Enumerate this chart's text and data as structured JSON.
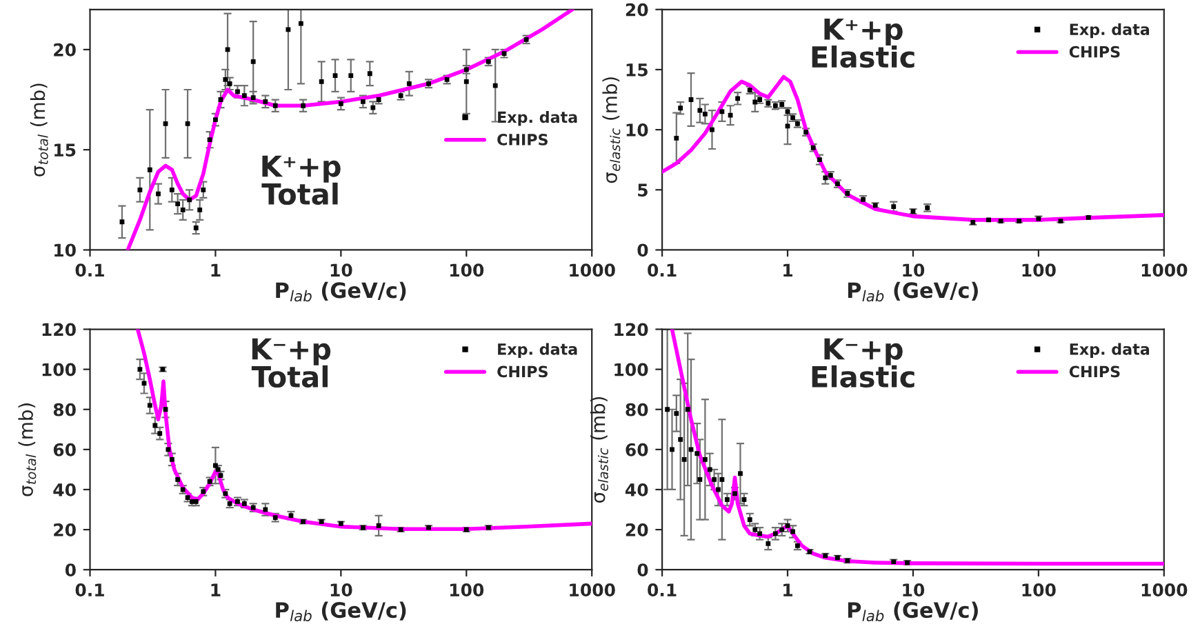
{
  "chart_data": [
    {
      "type": "scatter",
      "log": "x",
      "xlim": [
        0.1,
        1000
      ],
      "xticks": [
        0.1,
        1,
        10,
        100,
        1000
      ],
      "ylim": [
        10,
        22
      ],
      "yticks": [
        10,
        15,
        20
      ],
      "xlabel": "P$_{lab}$ (GeV/c)",
      "ylabel": "σ$_{total}$ (mb)",
      "annotations": [
        "K⁺+p\nTotal"
      ],
      "legend": "right",
      "grid": false,
      "series": [
        {
          "name": "Exp. data",
          "marker": "square",
          "color": "#000000",
          "x": [
            0.18,
            0.25,
            0.3,
            0.35,
            0.4,
            0.45,
            0.5,
            0.55,
            0.6,
            0.62,
            0.7,
            0.75,
            0.8,
            0.9,
            1.0,
            1.1,
            1.2,
            1.25,
            1.3,
            1.5,
            1.7,
            2.0,
            2.0,
            2.5,
            3.0,
            3.8,
            4.8,
            5,
            7,
            9,
            10,
            12,
            15,
            17,
            18,
            20,
            30,
            35,
            50,
            70,
            100,
            100,
            150,
            170,
            200,
            300
          ],
          "values": [
            11.4,
            13.0,
            14.0,
            12.8,
            16.3,
            13.0,
            12.3,
            12.0,
            16.3,
            12.5,
            11.1,
            12.0,
            13.0,
            15.5,
            16.5,
            17.5,
            18.5,
            20.0,
            18.3,
            17.9,
            17.7,
            19.4,
            17.6,
            17.4,
            17.2,
            21.0,
            21.3,
            17.2,
            18.4,
            18.7,
            17.3,
            18.7,
            17.4,
            18.8,
            17.1,
            17.5,
            17.7,
            18.3,
            18.3,
            18.5,
            19.0,
            18.4,
            19.4,
            18.2,
            19.8,
            20.5
          ],
          "errors": [
            0.8,
            0.6,
            3.0,
            0.5,
            1.7,
            0.6,
            0.5,
            0.5,
            1.7,
            0.5,
            0.3,
            0.5,
            0.4,
            0.4,
            0.3,
            0.4,
            0.5,
            1.8,
            0.3,
            0.3,
            0.5,
            2.0,
            0.3,
            0.3,
            0.3,
            [
              18.0,
              22.0
            ],
            [
              18.3,
              22.0
            ],
            0.3,
            1.0,
            0.8,
            0.3,
            0.8,
            0.3,
            0.6,
            0.3,
            0.2,
            0.2,
            0.6,
            0.2,
            0.2,
            0.2,
            1.6,
            0.2,
            1.8,
            0.2,
            0.2
          ]
        },
        {
          "name": "CHIPS",
          "type": "line",
          "marker": "none",
          "color": "#ff00ff",
          "x": [
            0.2,
            0.25,
            0.3,
            0.35,
            0.4,
            0.45,
            0.5,
            0.55,
            0.62,
            0.7,
            0.8,
            0.9,
            1.0,
            1.1,
            1.25,
            1.4,
            2,
            3,
            5,
            10,
            20,
            50,
            100,
            200,
            400,
            700
          ],
          "values": [
            10.0,
            11.5,
            12.9,
            13.9,
            14.2,
            14.0,
            13.3,
            12.8,
            12.5,
            12.7,
            13.8,
            15.3,
            16.5,
            17.4,
            18.0,
            17.7,
            17.5,
            17.2,
            17.2,
            17.4,
            17.7,
            18.3,
            19.0,
            19.9,
            21.0,
            22.0
          ]
        }
      ]
    },
    {
      "type": "scatter",
      "log": "x",
      "xlim": [
        0.1,
        1000
      ],
      "xticks": [
        0.1,
        1,
        10,
        100,
        1000
      ],
      "ylim": [
        0,
        20
      ],
      "yticks": [
        0,
        5,
        10,
        15,
        20
      ],
      "xlabel": "P$_{lab}$ (GeV/c)",
      "ylabel": "σ$_{elastic}$ (mb)",
      "annotations": [
        "K⁺+p\nElastic"
      ],
      "legend": "top right",
      "grid": false,
      "series": [
        {
          "name": "Exp. data",
          "marker": "square",
          "color": "#000000",
          "x": [
            0.13,
            0.14,
            0.17,
            0.2,
            0.22,
            0.25,
            0.3,
            0.35,
            0.4,
            0.5,
            0.55,
            0.6,
            0.7,
            0.8,
            0.9,
            1.0,
            1.0,
            1.1,
            1.2,
            1.4,
            1.6,
            1.8,
            2.0,
            2.2,
            2.5,
            3,
            4,
            5,
            7,
            10,
            13,
            30,
            40,
            50,
            70,
            100,
            150,
            250
          ],
          "values": [
            9.3,
            11.8,
            12.5,
            11.6,
            11.3,
            10.0,
            11.5,
            11.2,
            12.6,
            13.3,
            12.3,
            12.5,
            12.2,
            12.0,
            12.1,
            10.3,
            11.5,
            11.0,
            10.5,
            9.8,
            8.5,
            7.5,
            6.0,
            6.2,
            5.5,
            4.7,
            4.2,
            3.7,
            3.6,
            3.2,
            3.5,
            2.3,
            2.5,
            2.4,
            2.4,
            2.6,
            2.4,
            2.7
          ],
          "errors": [
            2.1,
            0.5,
            2.2,
            1.0,
            0.8,
            1.6,
            0.8,
            0.8,
            0.5,
            0.3,
            0.8,
            0.3,
            0.3,
            0.3,
            0.3,
            1.5,
            0.3,
            0.3,
            0.3,
            0.3,
            0.3,
            0.4,
            0.5,
            0.3,
            0.3,
            0.3,
            0.3,
            0.2,
            0.4,
            0.2,
            0.3,
            0.2,
            0.1,
            0.1,
            0.1,
            0.2,
            0.1,
            0.1
          ]
        },
        {
          "name": "CHIPS",
          "type": "line",
          "marker": "none",
          "color": "#ff00ff",
          "x": [
            0.1,
            0.13,
            0.17,
            0.22,
            0.28,
            0.35,
            0.43,
            0.5,
            0.6,
            0.7,
            0.8,
            0.93,
            1.05,
            1.2,
            1.4,
            1.7,
            2,
            3,
            5,
            10,
            30,
            100,
            300,
            1000
          ],
          "values": [
            6.5,
            7.2,
            8.3,
            9.7,
            11.5,
            13.2,
            14.0,
            13.7,
            13.0,
            12.7,
            13.5,
            14.4,
            14.0,
            12.5,
            10.0,
            8.0,
            6.5,
            4.6,
            3.4,
            2.8,
            2.5,
            2.5,
            2.7,
            2.9
          ]
        }
      ]
    },
    {
      "type": "scatter",
      "log": "x",
      "xlim": [
        0.1,
        1000
      ],
      "xticks": [
        0.1,
        1,
        10,
        100,
        1000
      ],
      "ylim": [
        0,
        120
      ],
      "yticks": [
        0,
        20,
        40,
        60,
        80,
        100,
        120
      ],
      "xlabel": "P$_{lab}$ (GeV/c)",
      "ylabel": "σ$_{total}$ (mb)",
      "annotations": [
        "K⁻+p\nTotal"
      ],
      "legend": "top right",
      "grid": false,
      "series": [
        {
          "name": "Exp. data",
          "marker": "square",
          "color": "#000000",
          "x": [
            0.25,
            0.27,
            0.3,
            0.33,
            0.36,
            0.38,
            0.4,
            0.42,
            0.45,
            0.5,
            0.55,
            0.6,
            0.65,
            0.7,
            0.8,
            0.9,
            1.0,
            1.05,
            1.1,
            1.2,
            1.3,
            1.5,
            1.7,
            2,
            2.5,
            3,
            4,
            5,
            7,
            10,
            15,
            20,
            30,
            50,
            100,
            150
          ],
          "values": [
            100,
            93,
            82,
            72,
            68,
            100,
            80,
            60,
            55,
            45,
            40,
            36,
            34,
            34,
            39,
            44,
            52,
            50,
            47,
            38,
            33,
            34,
            33,
            31,
            30,
            26,
            27,
            24,
            24,
            23,
            21,
            22,
            20,
            21,
            20,
            21
          ],
          "errors": [
            5,
            5,
            4,
            4,
            3,
            1,
            4,
            3,
            3,
            3,
            2,
            2,
            2,
            2,
            2,
            2,
            9,
            2,
            2,
            2,
            2,
            2,
            2,
            2,
            3,
            2,
            2,
            1,
            1,
            1,
            1,
            5,
            1,
            1,
            1,
            1
          ]
        },
        {
          "name": "CHIPS",
          "type": "line",
          "marker": "none",
          "color": "#ff00ff",
          "x": [
            0.24,
            0.27,
            0.3,
            0.33,
            0.35,
            0.37,
            0.385,
            0.4,
            0.43,
            0.47,
            0.55,
            0.65,
            0.72,
            0.8,
            0.9,
            1.0,
            1.05,
            1.15,
            1.25,
            1.5,
            2,
            3,
            5,
            10,
            30,
            100,
            300,
            1000
          ],
          "values": [
            120,
            108,
            95,
            82,
            75,
            82,
            94,
            78,
            60,
            50,
            41,
            36,
            35,
            38,
            43,
            49,
            48,
            40,
            36,
            33,
            30,
            27,
            24,
            21.5,
            20.3,
            20.3,
            21.5,
            23
          ]
        }
      ]
    },
    {
      "type": "scatter",
      "log": "x",
      "xlim": [
        0.1,
        1000
      ],
      "xticks": [
        0.1,
        1,
        10,
        100,
        1000
      ],
      "ylim": [
        0,
        120
      ],
      "yticks": [
        0,
        20,
        40,
        60,
        80,
        100,
        120
      ],
      "xlabel": "P$_{lab}$ (GeV/c)",
      "ylabel": "σ$_{elastic}$ (mb)",
      "annotations": [
        "K⁻+p\nElastic"
      ],
      "legend": "top right",
      "grid": false,
      "series": [
        {
          "name": "Exp. data",
          "marker": "square",
          "color": "#000000",
          "x": [
            0.11,
            0.12,
            0.13,
            0.14,
            0.15,
            0.16,
            0.17,
            0.19,
            0.2,
            0.22,
            0.24,
            0.26,
            0.28,
            0.3,
            0.33,
            0.38,
            0.42,
            0.45,
            0.5,
            0.55,
            0.6,
            0.7,
            0.8,
            0.9,
            1.0,
            1.1,
            1.2,
            1.5,
            2,
            2.5,
            3,
            7,
            9
          ],
          "values": [
            80,
            60,
            78,
            65,
            55,
            80,
            60,
            58,
            45,
            55,
            50,
            45,
            40,
            45,
            35,
            38,
            48,
            35,
            25,
            20,
            18,
            13,
            18,
            20,
            22,
            19,
            12,
            9,
            7,
            6,
            4.5,
            4,
            3.5
          ],
          "errors": [
            40,
            20,
            9,
            30,
            38,
            38,
            45,
            15,
            20,
            30,
            8,
            5,
            8,
            30,
            3,
            3,
            15,
            3,
            3,
            3,
            3,
            3,
            3,
            3,
            3,
            3,
            2,
            1,
            1,
            1,
            1,
            1,
            1
          ]
        },
        {
          "name": "CHIPS",
          "type": "line",
          "marker": "none",
          "color": "#ff00ff",
          "x": [
            0.12,
            0.14,
            0.17,
            0.2,
            0.25,
            0.3,
            0.34,
            0.36,
            0.38,
            0.4,
            0.45,
            0.5,
            0.6,
            0.7,
            0.8,
            0.9,
            1.0,
            1.1,
            1.3,
            1.6,
            2,
            3,
            5,
            10,
            100,
            1000
          ],
          "values": [
            120,
            100,
            75,
            57,
            42,
            32,
            29,
            33,
            46,
            33,
            22,
            18,
            17,
            16.5,
            18,
            20,
            22,
            18,
            12,
            8,
            6,
            4.3,
            3.5,
            3.2,
            3.0,
            3.0
          ]
        }
      ]
    }
  ]
}
